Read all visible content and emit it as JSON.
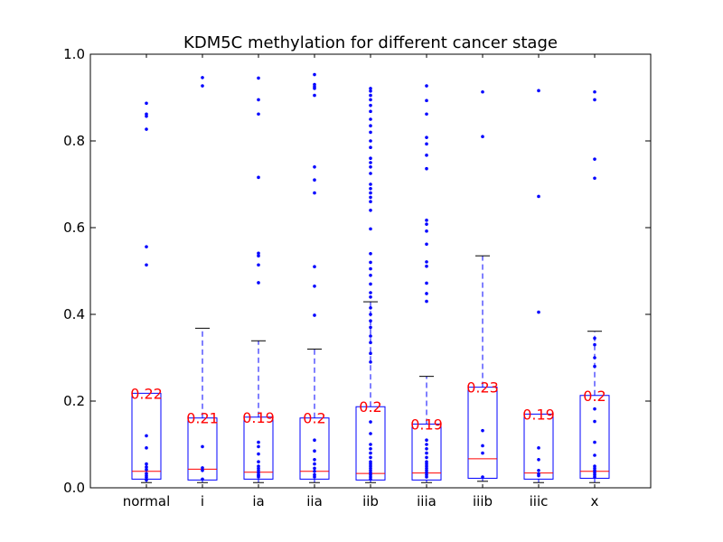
{
  "chart_data": {
    "type": "boxplot",
    "title": "KDM5C methylation for different cancer stage",
    "xlabel": "",
    "ylabel": "",
    "ylim": [
      0,
      1.0
    ],
    "y_ticks": [
      0.0,
      0.2,
      0.4,
      0.6,
      0.8,
      1.0
    ],
    "y_tick_labels": [
      "0.0",
      "0.2",
      "0.4",
      "0.6",
      "0.8",
      "1.0"
    ],
    "categories": [
      "normal",
      "i",
      "ia",
      "iia",
      "iib",
      "iiia",
      "iiib",
      "iiic",
      "x"
    ],
    "annotations": [
      "0.22",
      "0.21",
      "0.19",
      "0.2",
      "0.2",
      "0.19",
      "0.23",
      "0.19",
      "0.2"
    ],
    "colors": {
      "box": "#0000ff",
      "median": "#ff0000",
      "annotation": "#ff0000",
      "cap": "#000000",
      "axis": "#000000"
    },
    "boxes": [
      {
        "name": "normal",
        "whislo": 0.012,
        "q1": 0.02,
        "med": 0.038,
        "q3": 0.218,
        "whishi": null,
        "fliers": [
          0.887,
          0.862,
          0.857,
          0.827,
          0.556,
          0.514,
          0.12,
          0.092,
          0.055,
          0.048,
          0.042,
          0.033,
          0.028,
          0.024,
          0.018
        ]
      },
      {
        "name": "i",
        "whislo": 0.012,
        "q1": 0.018,
        "med": 0.043,
        "q3": 0.161,
        "whishi": 0.368,
        "fliers": [
          0.946,
          0.927,
          0.095,
          0.046,
          0.04,
          0.02
        ]
      },
      {
        "name": "ia",
        "whislo": 0.012,
        "q1": 0.02,
        "med": 0.036,
        "q3": 0.163,
        "whishi": 0.339,
        "fliers": [
          0.945,
          0.895,
          0.862,
          0.716,
          0.541,
          0.535,
          0.514,
          0.473,
          0.105,
          0.095,
          0.078,
          0.06,
          0.05,
          0.045,
          0.04,
          0.035,
          0.03,
          0.028,
          0.025
        ]
      },
      {
        "name": "iia",
        "whislo": 0.012,
        "q1": 0.02,
        "med": 0.038,
        "q3": 0.161,
        "whishi": 0.32,
        "fliers": [
          0.953,
          0.93,
          0.925,
          0.921,
          0.905,
          0.74,
          0.71,
          0.68,
          0.51,
          0.465,
          0.398,
          0.11,
          0.085,
          0.065,
          0.055,
          0.045,
          0.038,
          0.03,
          0.025
        ]
      },
      {
        "name": "iib",
        "whislo": 0.012,
        "q1": 0.018,
        "med": 0.033,
        "q3": 0.187,
        "whishi": 0.429,
        "fliers": [
          0.921,
          0.915,
          0.905,
          0.895,
          0.882,
          0.868,
          0.85,
          0.835,
          0.82,
          0.8,
          0.785,
          0.76,
          0.75,
          0.74,
          0.725,
          0.7,
          0.69,
          0.68,
          0.67,
          0.66,
          0.64,
          0.597,
          0.54,
          0.52,
          0.505,
          0.49,
          0.47,
          0.45,
          0.44,
          0.415,
          0.4,
          0.385,
          0.37,
          0.35,
          0.335,
          0.31,
          0.29,
          0.152,
          0.125,
          0.1,
          0.09,
          0.08,
          0.07,
          0.06,
          0.055,
          0.05,
          0.045,
          0.04,
          0.035,
          0.03,
          0.025,
          0.02
        ]
      },
      {
        "name": "iiia",
        "whislo": 0.012,
        "q1": 0.018,
        "med": 0.034,
        "q3": 0.147,
        "whishi": 0.257,
        "fliers": [
          0.927,
          0.893,
          0.862,
          0.808,
          0.793,
          0.767,
          0.736,
          0.617,
          0.608,
          0.592,
          0.562,
          0.521,
          0.511,
          0.472,
          0.448,
          0.43,
          0.11,
          0.1,
          0.09,
          0.08,
          0.07,
          0.06,
          0.055,
          0.05,
          0.045,
          0.04,
          0.035,
          0.03,
          0.025
        ]
      },
      {
        "name": "iiib",
        "whislo": 0.015,
        "q1": 0.022,
        "med": 0.067,
        "q3": 0.232,
        "whishi": 0.535,
        "fliers": [
          0.913,
          0.81,
          0.132,
          0.097,
          0.08,
          0.025
        ]
      },
      {
        "name": "iiic",
        "whislo": 0.012,
        "q1": 0.02,
        "med": 0.034,
        "q3": 0.17,
        "whishi": null,
        "fliers": [
          0.916,
          0.672,
          0.405,
          0.092,
          0.065,
          0.04,
          0.032,
          0.028
        ]
      },
      {
        "name": "x",
        "whislo": 0.012,
        "q1": 0.022,
        "med": 0.038,
        "q3": 0.213,
        "whishi": 0.361,
        "fliers": [
          0.913,
          0.895,
          0.758,
          0.714,
          0.345,
          0.33,
          0.3,
          0.28,
          0.182,
          0.153,
          0.105,
          0.075,
          0.05,
          0.045,
          0.04,
          0.035,
          0.03,
          0.025
        ]
      }
    ]
  }
}
